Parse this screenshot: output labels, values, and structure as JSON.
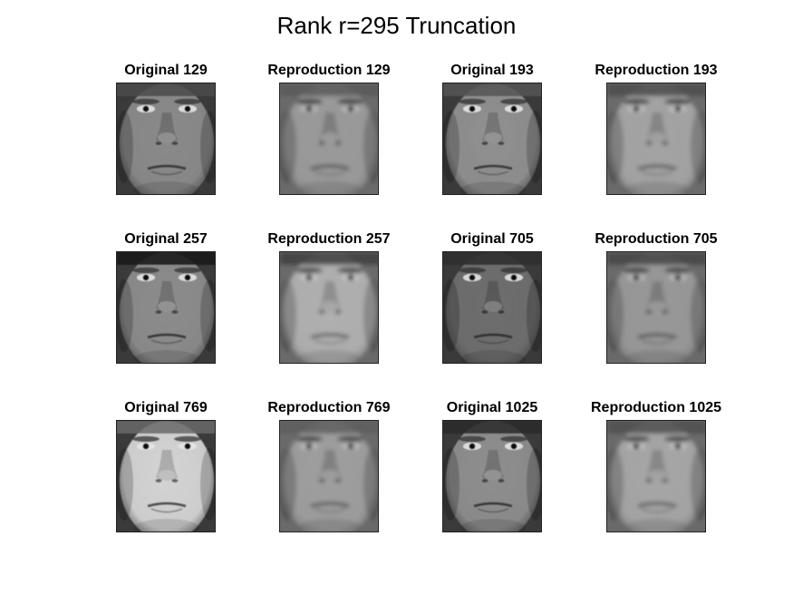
{
  "title": "Rank r=295 Truncation",
  "panels": [
    {
      "label": "Original 129",
      "kind": "original",
      "skin": "#8a8a8a",
      "hair": "#4a4a4a"
    },
    {
      "label": "Reproduction 129",
      "kind": "reproduction",
      "skin": "#9a9a9a",
      "hair": "#5a5a5a"
    },
    {
      "label": "Original 193",
      "kind": "original",
      "skin": "#909090",
      "hair": "#555555"
    },
    {
      "label": "Reproduction 193",
      "kind": "reproduction",
      "skin": "#a4a4a4",
      "hair": "#4c4c4c"
    },
    {
      "label": "Original 257",
      "kind": "original",
      "skin": "#8c8c8c",
      "hair": "#151515"
    },
    {
      "label": "Reproduction 257",
      "kind": "reproduction",
      "skin": "#b0b0b0",
      "hair": "#3e3e3e"
    },
    {
      "label": "Original 705",
      "kind": "original",
      "skin": "#6e6e6e",
      "hair": "#2e2e2e"
    },
    {
      "label": "Reproduction 705",
      "kind": "reproduction",
      "skin": "#989898",
      "hair": "#444444"
    },
    {
      "label": "Original 769",
      "kind": "original",
      "skin": "#d4d4d4",
      "hair": "#6a6a6a"
    },
    {
      "label": "Reproduction 769",
      "kind": "reproduction",
      "skin": "#9e9e9e",
      "hair": "#5e5e5e"
    },
    {
      "label": "Original 1025",
      "kind": "original",
      "skin": "#8e8e8e",
      "hair": "#2a2a2a"
    },
    {
      "label": "Reproduction 1025",
      "kind": "reproduction",
      "skin": "#a6a6a6",
      "hair": "#505050"
    }
  ]
}
